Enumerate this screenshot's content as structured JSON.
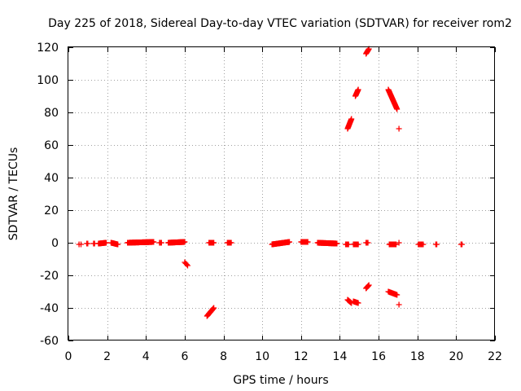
{
  "chart_data": {
    "type": "scatter",
    "title": "Day 225 of 2018, Sidereal Day-to-day VTEC variation (SDTVAR) for receiver rom2",
    "xlabel": "GPS time / hours",
    "ylabel": "SDTVAR / TECUs",
    "xlim": [
      0,
      22
    ],
    "ylim": [
      -60,
      120
    ],
    "xticks": [
      "0",
      "2",
      "4",
      "6",
      "8",
      "10",
      "12",
      "14",
      "16",
      "18",
      "20",
      "22"
    ],
    "yticks": [
      "-60",
      "-40",
      "-20",
      "0",
      "20",
      "40",
      "60",
      "80",
      "100",
      "120"
    ],
    "grid": true,
    "marker": "+",
    "color": "#ff0000",
    "series": [
      {
        "name": "SDTVAR",
        "segments": [
          {
            "x0": 0.55,
            "y0": -1,
            "x1": 0.65,
            "y1": -1,
            "n": 2
          },
          {
            "x0": 0.95,
            "y0": -0.5,
            "x1": 1.0,
            "y1": -0.5,
            "n": 2
          },
          {
            "x0": 1.3,
            "y0": -0.5,
            "x1": 1.35,
            "y1": -0.5,
            "n": 2
          },
          {
            "x0": 1.55,
            "y0": -0.5,
            "x1": 1.95,
            "y1": 0,
            "n": 18
          },
          {
            "x0": 2.2,
            "y0": 0,
            "x1": 2.55,
            "y1": -1,
            "n": 16
          },
          {
            "x0": 3.05,
            "y0": 0,
            "x1": 4.4,
            "y1": 0.5,
            "n": 70
          },
          {
            "x0": 4.7,
            "y0": 0,
            "x1": 4.8,
            "y1": 0,
            "n": 3
          },
          {
            "x0": 5.15,
            "y0": 0,
            "x1": 6.0,
            "y1": 0.5,
            "n": 42
          },
          {
            "x0": 6.0,
            "y0": -12,
            "x1": 6.15,
            "y1": -14,
            "n": 4
          },
          {
            "x0": 7.15,
            "y0": -45,
            "x1": 7.5,
            "y1": -40,
            "n": 16
          },
          {
            "x0": 7.25,
            "y0": 0,
            "x1": 7.5,
            "y1": 0,
            "n": 9
          },
          {
            "x0": 8.2,
            "y0": 0,
            "x1": 8.4,
            "y1": 0,
            "n": 8
          },
          {
            "x0": 10.5,
            "y0": -1,
            "x1": 11.4,
            "y1": 0.5,
            "n": 45
          },
          {
            "x0": 12.0,
            "y0": 0.5,
            "x1": 12.35,
            "y1": 0.5,
            "n": 15
          },
          {
            "x0": 12.85,
            "y0": 0,
            "x1": 13.85,
            "y1": -0.5,
            "n": 48
          },
          {
            "x0": 14.3,
            "y0": -1,
            "x1": 14.45,
            "y1": -1,
            "n": 5
          },
          {
            "x0": 14.4,
            "y0": -35,
            "x1": 14.6,
            "y1": -37,
            "n": 8
          },
          {
            "x0": 14.4,
            "y0": 70,
            "x1": 14.6,
            "y1": 76,
            "n": 15
          },
          {
            "x0": 14.7,
            "y0": -36,
            "x1": 14.95,
            "y1": -37,
            "n": 9
          },
          {
            "x0": 14.7,
            "y0": -1,
            "x1": 14.95,
            "y1": -1,
            "n": 8
          },
          {
            "x0": 14.8,
            "y0": 90,
            "x1": 14.95,
            "y1": 94,
            "n": 12
          },
          {
            "x0": 15.35,
            "y0": -28,
            "x1": 15.5,
            "y1": -26,
            "n": 6
          },
          {
            "x0": 15.35,
            "y0": 0,
            "x1": 15.45,
            "y1": 0,
            "n": 3
          },
          {
            "x0": 15.35,
            "y0": 116,
            "x1": 15.5,
            "y1": 119,
            "n": 8
          },
          {
            "x0": 16.5,
            "y0": 94,
            "x1": 16.95,
            "y1": 82,
            "n": 30
          },
          {
            "x0": 16.5,
            "y0": -30,
            "x1": 16.95,
            "y1": -32,
            "n": 15
          },
          {
            "x0": 16.55,
            "y0": -1,
            "x1": 16.9,
            "y1": -1,
            "n": 15
          },
          {
            "x0": 17.05,
            "y0": 70,
            "x1": 17.05,
            "y1": 70,
            "n": 1
          },
          {
            "x0": 17.05,
            "y0": -38,
            "x1": 17.05,
            "y1": -38,
            "n": 1
          },
          {
            "x0": 17.05,
            "y0": 0,
            "x1": 17.05,
            "y1": 0,
            "n": 1
          },
          {
            "x0": 18.05,
            "y0": -1,
            "x1": 18.3,
            "y1": -1,
            "n": 6
          },
          {
            "x0": 18.95,
            "y0": -1,
            "x1": 19.0,
            "y1": -1,
            "n": 2
          },
          {
            "x0": 20.25,
            "y0": -1,
            "x1": 20.3,
            "y1": -1,
            "n": 2
          }
        ]
      }
    ]
  }
}
